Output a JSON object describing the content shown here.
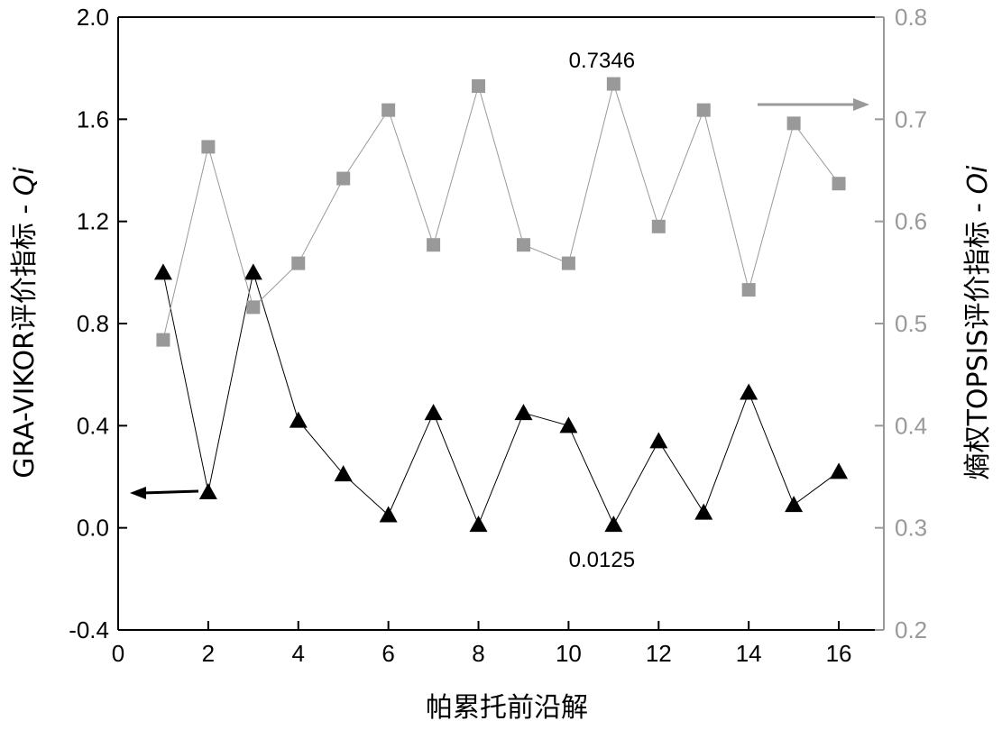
{
  "chart_data": {
    "type": "line",
    "title": "",
    "xlabel": "帕累托前沿解",
    "xlim": [
      0,
      17
    ],
    "xticks": [
      "0",
      "2",
      "4",
      "6",
      "8",
      "10",
      "12",
      "14",
      "16"
    ],
    "x": [
      1,
      2,
      3,
      4,
      5,
      6,
      7,
      8,
      9,
      10,
      11,
      12,
      13,
      14,
      15,
      16
    ],
    "y_left": {
      "label_main": "GRA-VIKOR评价指标 - ",
      "label_italic": "Qi",
      "lim": [
        -0.4,
        2.0
      ],
      "ticks": [
        "-0.4",
        "0.0",
        "0.4",
        "0.8",
        "1.2",
        "1.6",
        "2.0"
      ],
      "color": "#000000"
    },
    "y_right": {
      "label_main": "熵权TOPSIS评价指标 - ",
      "label_italic": "Oi",
      "lim": [
        0.2,
        0.8
      ],
      "ticks": [
        "0.2",
        "0.3",
        "0.4",
        "0.5",
        "0.6",
        "0.7",
        "0.8"
      ],
      "color": "#999999"
    },
    "series": [
      {
        "axis": "left",
        "marker": "triangle",
        "color": "#000000",
        "values": [
          1.0,
          0.14,
          1.0,
          0.42,
          0.21,
          0.05,
          0.45,
          0.0125,
          0.45,
          0.4,
          0.0125,
          0.34,
          0.06,
          0.53,
          0.09,
          0.22
        ]
      },
      {
        "axis": "right",
        "marker": "square",
        "color": "#999999",
        "values": [
          0.484,
          0.673,
          0.516,
          0.559,
          0.642,
          0.709,
          0.577,
          0.7325,
          0.577,
          0.559,
          0.7346,
          0.595,
          0.709,
          0.533,
          0.696,
          0.637
        ]
      }
    ],
    "annotations": [
      {
        "text": "0.7346",
        "series": 1,
        "point": 10,
        "position": "above"
      },
      {
        "text": "0.0125",
        "series": 0,
        "point": 10,
        "position": "below"
      }
    ]
  }
}
